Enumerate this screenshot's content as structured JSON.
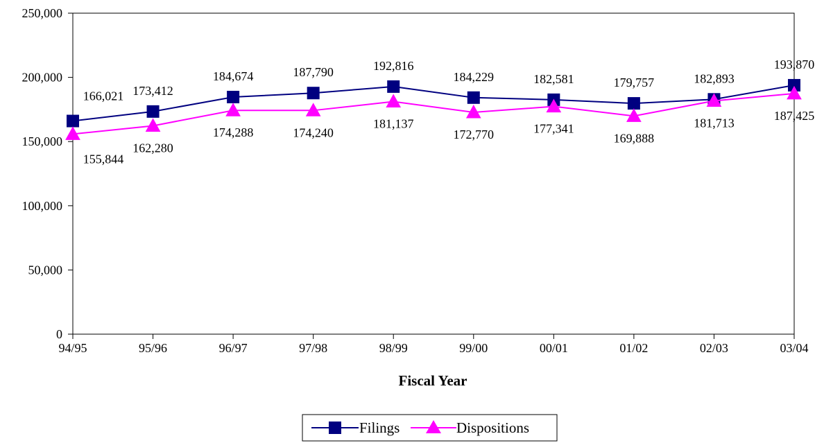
{
  "chart_data": {
    "type": "line",
    "title": "",
    "xlabel": "Fiscal Year",
    "ylabel": "",
    "categories": [
      "94/95",
      "95/96",
      "96/97",
      "97/98",
      "98/99",
      "99/00",
      "00/01",
      "01/02",
      "02/03",
      "03/04"
    ],
    "ylim": [
      0,
      250000
    ],
    "yticks": [
      0,
      50000,
      100000,
      150000,
      200000,
      250000
    ],
    "ytick_labels": [
      "0",
      "50,000",
      "100,000",
      "150,000",
      "200,000",
      "250,000"
    ],
    "grid": false,
    "legend_position": "bottom-center",
    "series": [
      {
        "name": "Filings",
        "color": "#000080",
        "marker": "square",
        "values": [
          166021,
          173412,
          184674,
          187790,
          192816,
          184229,
          182581,
          179757,
          182893,
          193870
        ],
        "labels": [
          "166,021",
          "173,412",
          "184,674",
          "187,790",
          "192,816",
          "184,229",
          "182,581",
          "179,757",
          "182,893",
          "193,870"
        ]
      },
      {
        "name": "Dispositions",
        "color": "#ff00ff",
        "marker": "triangle",
        "values": [
          155844,
          162280,
          174288,
          174240,
          181137,
          172770,
          177341,
          169888,
          181713,
          187425
        ],
        "labels": [
          "155,844",
          "162,280",
          "174,288",
          "174,240",
          "181,137",
          "172,770",
          "177,341",
          "169,888",
          "181,713",
          "187,425"
        ]
      }
    ]
  }
}
